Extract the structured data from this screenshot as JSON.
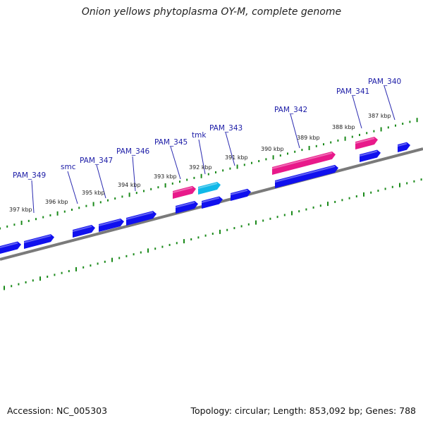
{
  "title": "Onion yellows phytoplasma OY-M, complete genome",
  "footer": {
    "accession": "Accession: NC_005303",
    "summary": "Topology: circular; Length: 853,092 bp; Genes: 788"
  },
  "colors": {
    "background": "#ffffff",
    "backbone": "#7a7a7a",
    "gene_cds": "#1010ee",
    "gene_rrna": "#e8198a",
    "gene_trna": "#10b8e8",
    "tick_marks": "#1a8a1a",
    "label_text": "#1a1aa6",
    "leader_line": "#2a2ab0"
  },
  "kbp_ticks": [
    "397 kbp",
    "396 kbp",
    "395 kbp",
    "394 kbp",
    "393 kbp",
    "392 kbp",
    "391 kbp",
    "390 kbp",
    "389 kbp",
    "388 kbp",
    "387 kbp"
  ],
  "gene_labels": [
    "PAM_349",
    "smc",
    "PAM_347",
    "PAM_346",
    "PAM_345",
    "tmk",
    "PAM_343",
    "PAM_342",
    "PAM_341",
    "PAM_340"
  ]
}
